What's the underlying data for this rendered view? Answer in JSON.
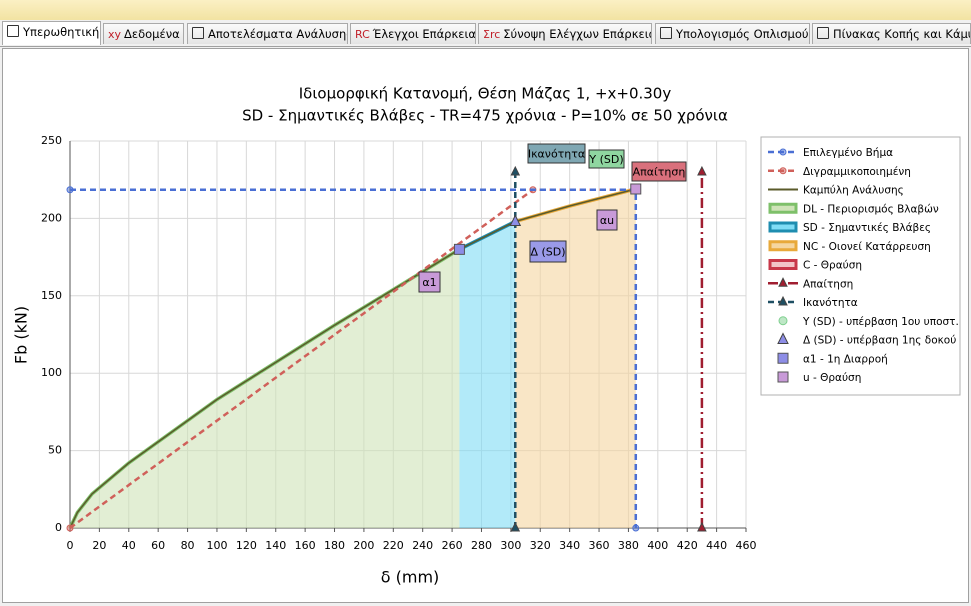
{
  "tabs": [
    {
      "label": "Υπερωθητική",
      "selected": true
    },
    {
      "icon": "xy",
      "label": "Δεδομένα"
    },
    {
      "label": "Αποτελέσματα Ανάλυσης"
    },
    {
      "icon": "RC",
      "label": "Έλεγχοι Επάρκειας"
    },
    {
      "icon": "Σrc",
      "label": "Σύνοψη Ελέγχων Επάρκειας"
    },
    {
      "label": "Υπολογισμός Οπλισμού"
    },
    {
      "label": "Πίνακας Κοπής και Κάμψης"
    }
  ],
  "chart_data": {
    "type": "line",
    "title": "Ιδιομορφική Κατανομή, Θέση Μάζας 1, +x+0.30y",
    "subtitle": "SD - Σημαντικές Βλάβες - TR=475 χρόνια - P=10% σε 50 χρόνια",
    "x_label": "δ (mm)",
    "y_label": "Fb (kN)",
    "xlim": [
      0,
      460
    ],
    "xticks": [
      0,
      20,
      40,
      60,
      80,
      100,
      120,
      140,
      160,
      180,
      200,
      220,
      240,
      260,
      280,
      300,
      320,
      340,
      360,
      380,
      400,
      420,
      440,
      460
    ],
    "ylim": [
      0,
      250
    ],
    "yticks": [
      0,
      50,
      100,
      150,
      200,
      250
    ],
    "grid": true,
    "legend": "right",
    "series": [
      {
        "name": "Επιλεγμένο Βήμα",
        "color": "#4a6fd4",
        "style": "dashed",
        "marker": "circle",
        "x": [
          0,
          385,
          385
        ],
        "values": [
          218.5,
          218.5,
          0
        ]
      },
      {
        "name": "Διγραμμικοποιημένη",
        "color": "#d0605a",
        "style": "dashed",
        "marker": "circle",
        "x": [
          0,
          315,
          385
        ],
        "values": [
          0,
          218.5,
          218.5
        ]
      },
      {
        "name": "Καμπύλη Ανάλυσης",
        "color": "#5a5a2a",
        "style": "solid",
        "x": [
          0,
          5,
          15,
          40,
          100,
          180,
          265,
          303,
          340,
          385
        ],
        "values": [
          0,
          10,
          22,
          42,
          83,
          131,
          180,
          198,
          208,
          219
        ]
      },
      {
        "name": "DL - Περιορισμός Βλαβών",
        "color": "#7ec06a",
        "fill": "#cfe3b8",
        "style": "band",
        "x": [
          0,
          5,
          15,
          40,
          100,
          180,
          265
        ],
        "values": [
          0,
          10,
          22,
          42,
          83,
          131,
          180
        ]
      },
      {
        "name": "SD - Σημαντικές Βλάβες",
        "color": "#1e8db0",
        "fill": "#7fdcf5",
        "style": "band",
        "x": [
          265,
          303
        ],
        "values": [
          180,
          198
        ]
      },
      {
        "name": "NC - Οιονεί Κατάρρευση",
        "color": "#e8a93a",
        "fill": "#f5d6a0",
        "style": "band",
        "x": [
          303,
          340,
          385
        ],
        "values": [
          198,
          208,
          219
        ]
      },
      {
        "name": "C - Θραύση",
        "color": "#c8384a",
        "fill": "#f2c4c8",
        "style": "band",
        "x": [],
        "values": []
      },
      {
        "name": "Απαίτηση",
        "color": "#a01e30",
        "style": "dashdot",
        "marker": "triangle",
        "x": [
          430,
          430
        ],
        "values": [
          0,
          230
        ]
      },
      {
        "name": "Ικανότητα",
        "color": "#1e4f63",
        "style": "dashed",
        "marker": "triangle",
        "x": [
          303,
          303
        ],
        "values": [
          0,
          230
        ]
      },
      {
        "name": "Y (SD) - υπέρβαση 1ου υποστ.",
        "color": "#7ecf8e",
        "style": "point",
        "marker": "circle",
        "x": [
          385
        ],
        "values": [
          218.5
        ]
      },
      {
        "name": "Δ (SD) - υπέρβαση 1ης δοκού",
        "color": "#8d8de6",
        "style": "point",
        "marker": "triangle",
        "x": [
          303
        ],
        "values": [
          198
        ]
      },
      {
        "name": "α1 - 1η Διαρροή",
        "color": "#8d8de6",
        "style": "point",
        "marker": "square",
        "x": [
          265
        ],
        "values": [
          180
        ]
      },
      {
        "name": "u - Θραύση",
        "color": "#c89ad8",
        "style": "point",
        "marker": "square",
        "x": [
          385
        ],
        "values": [
          219
        ]
      }
    ],
    "annotations": [
      {
        "text": "Ικανότητα",
        "color": "#7fa7b3"
      },
      {
        "text": "Y (SD)",
        "color": "#8fd6a0"
      },
      {
        "text": "Απαίτηση",
        "color": "#d9707c"
      },
      {
        "text": "αu",
        "color": "#c89ad8"
      },
      {
        "text": "Δ (SD)",
        "color": "#9a9ae8"
      },
      {
        "text": "α1",
        "color": "#c89ad8"
      }
    ]
  }
}
